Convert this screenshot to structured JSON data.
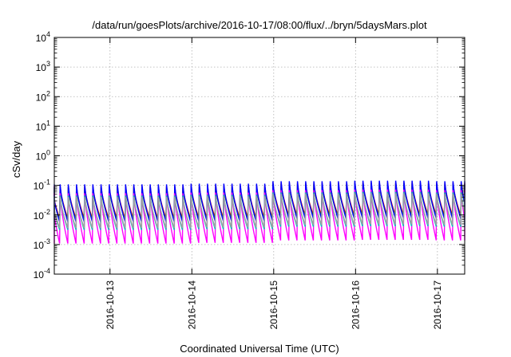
{
  "chart_data": {
    "type": "line",
    "title": "/data/run/goesPlots/archive/2016-10-17/08:00/flux/../bryn/5daysMars.plot",
    "xlabel": "Coordinated Universal Time (UTC)",
    "ylabel": "cSv/day",
    "yscale": "log",
    "ylim": [
      0.0001,
      10000
    ],
    "y_tick_labels": [
      {
        "base": "10",
        "exp": "-4"
      },
      {
        "base": "10",
        "exp": "-3"
      },
      {
        "base": "10",
        "exp": "-2"
      },
      {
        "base": "10",
        "exp": "-1"
      },
      {
        "base": "10",
        "exp": "0"
      },
      {
        "base": "10",
        "exp": "1"
      },
      {
        "base": "10",
        "exp": "2"
      },
      {
        "base": "10",
        "exp": "3"
      },
      {
        "base": "10",
        "exp": "4"
      }
    ],
    "xlim": [
      "2016-10-12 07:40",
      "2016-10-17 08:00"
    ],
    "x_tick_labels": [
      "2016-10-13",
      "2016-10-14",
      "2016-10-15",
      "2016-10-16",
      "2016-10-17"
    ],
    "grid": true,
    "pattern_period_hours": 2.4,
    "series": [
      {
        "color": "#ff0000",
        "peak": 0.105,
        "trough": 0.0085
      },
      {
        "color": "#00a000",
        "peak": 0.095,
        "trough": 0.0075
      },
      {
        "color": "#0000ff",
        "peak": 0.12,
        "trough": 0.0065
      },
      {
        "color": "#ff00ff",
        "peak": 0.06,
        "trough": 0.0012
      },
      {
        "color": "#00c0c0",
        "peak": 0.05,
        "trough": 0.0035
      },
      {
        "color": "#a0a0a0",
        "peak": 0.045,
        "trough": 0.004
      }
    ],
    "variation": {
      "day_boundaries": [
        "2016-10-12",
        "2016-10-14",
        "2016-10-15",
        "2016-10-16",
        "2016-10-17"
      ],
      "level_factors": [
        0.9,
        0.95,
        1.15,
        1.2,
        1.15
      ]
    }
  }
}
